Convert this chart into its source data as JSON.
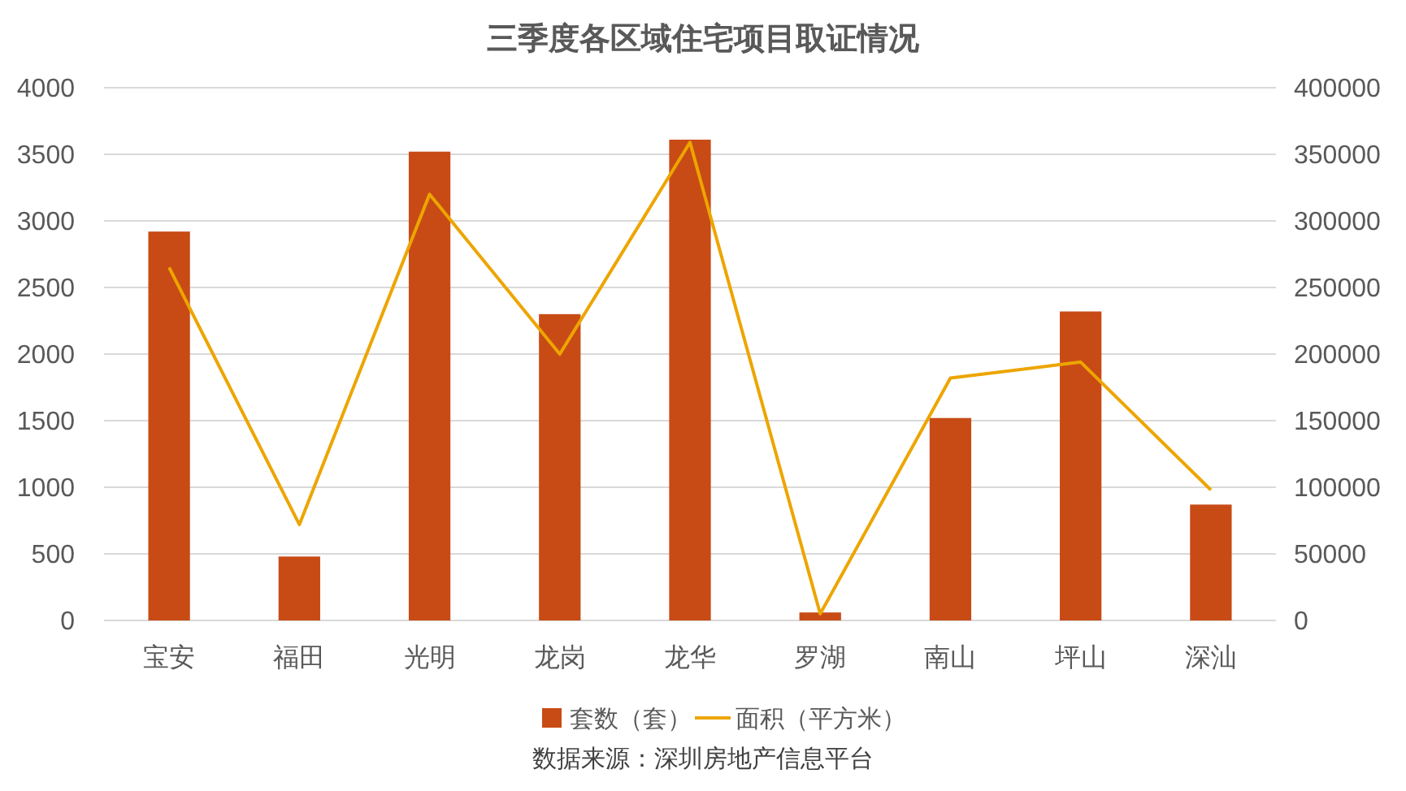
{
  "chart_data": {
    "type": "bar",
    "title": "三季度各区域住宅项目取证情况",
    "categories": [
      "宝安",
      "福田",
      "光明",
      "龙岗",
      "龙华",
      "罗湖",
      "南山",
      "坪山",
      "深汕"
    ],
    "series": [
      {
        "name": "套数（套）",
        "color": "#c84b16",
        "values": [
          2920,
          480,
          3520,
          2300,
          3610,
          60,
          1520,
          2320,
          870
        ]
      },
      {
        "name": "面积（平方米）",
        "type": "line",
        "axis": "y2",
        "color": "#eda500",
        "values": [
          265000,
          72000,
          320000,
          200000,
          359000,
          5000,
          182000,
          194000,
          98000
        ]
      }
    ],
    "ylim": [
      0,
      4000
    ],
    "yticks": [
      0,
      500,
      1000,
      1500,
      2000,
      2500,
      3000,
      3500,
      4000
    ],
    "y2lim": [
      0,
      400000
    ],
    "y2ticks": [
      0,
      50000,
      100000,
      150000,
      200000,
      250000,
      300000,
      350000,
      400000
    ],
    "grid": "y",
    "legend": "bottom",
    "marker": "none",
    "annotations": [
      "数据来源：深圳房地产信息平台"
    ]
  }
}
